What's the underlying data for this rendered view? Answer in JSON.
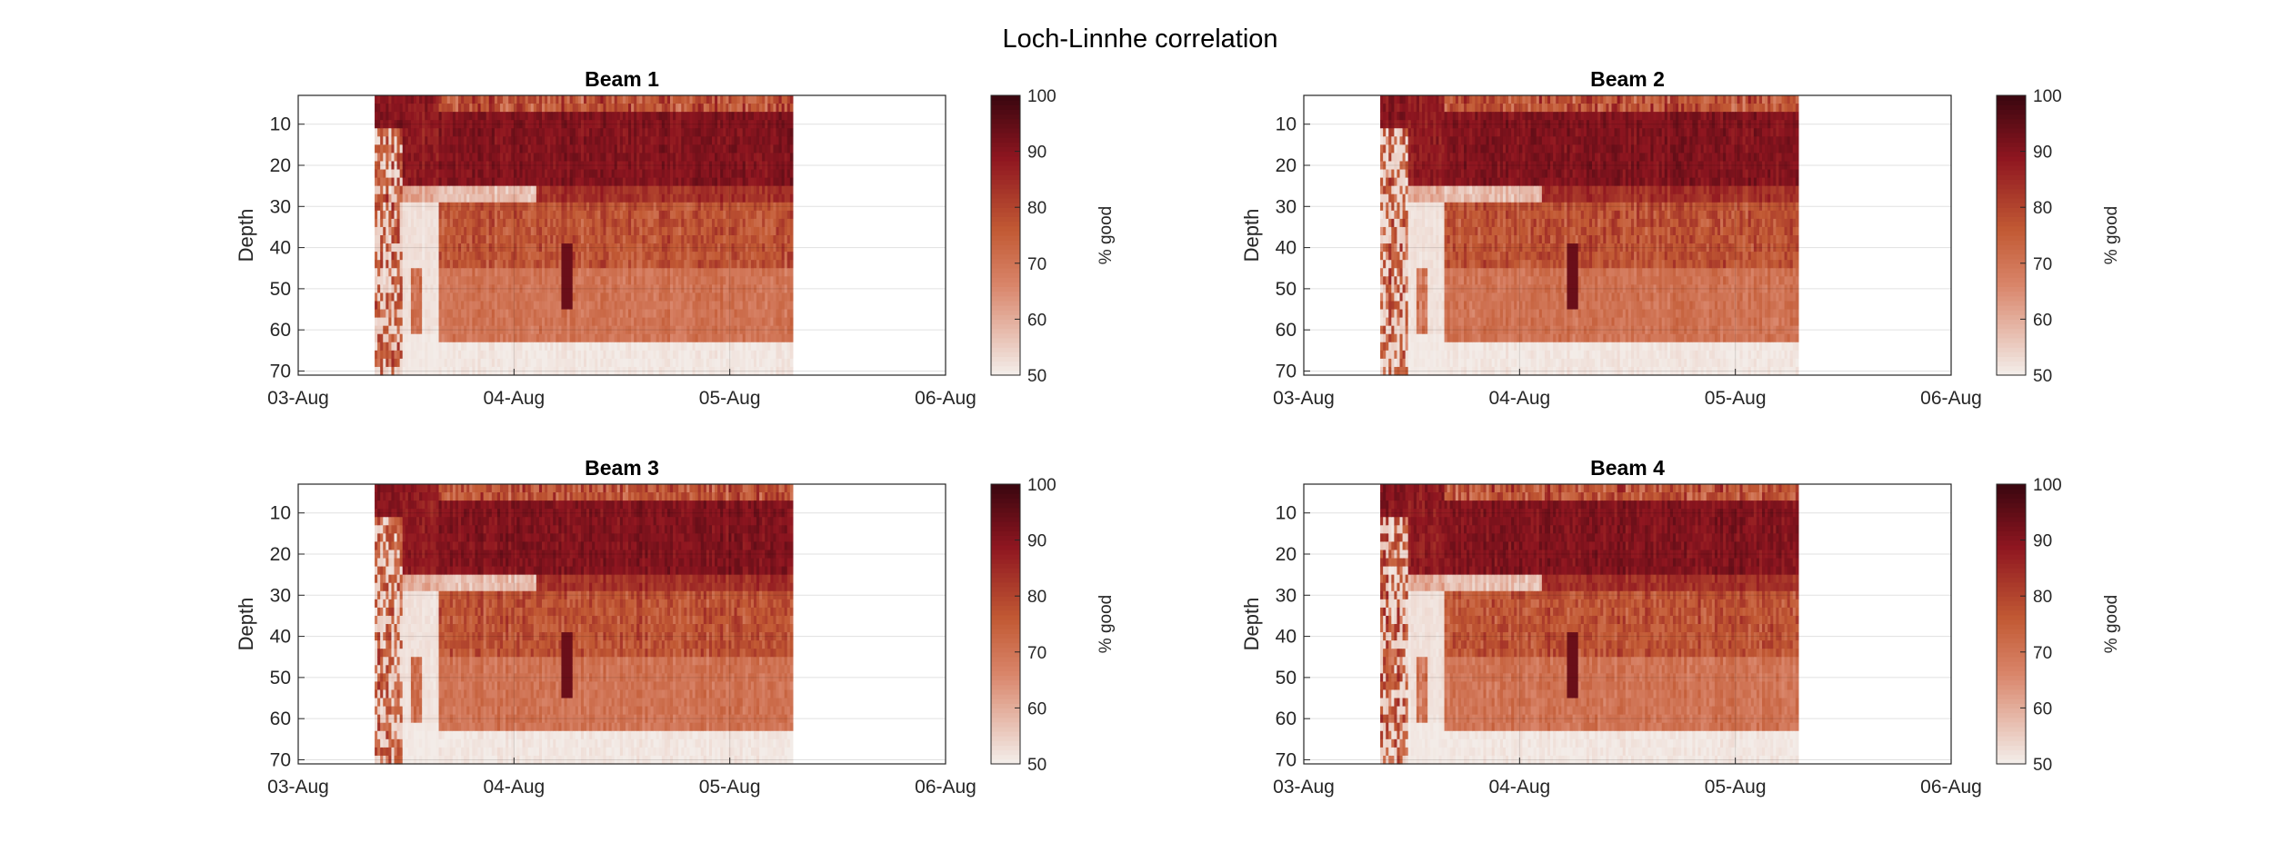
{
  "figure": {
    "suptitle": "Loch-Linnhe correlation"
  },
  "chart_data": [
    {
      "type": "heatmap",
      "title": "Beam 1",
      "xlabel": "",
      "ylabel": "Depth",
      "colorbar_label": "% good",
      "x_ticks": [
        "03-Aug",
        "04-Aug",
        "05-Aug",
        "06-Aug"
      ],
      "y_ticks": [
        10,
        20,
        30,
        40,
        50,
        60,
        70
      ],
      "x_range": [
        "03-Aug",
        "06-Aug"
      ],
      "data_x_range": [
        "03-Aug 08:30",
        "05-Aug 07:00"
      ],
      "y_range": [
        3,
        71
      ],
      "y_reversed": true,
      "color_range": [
        50,
        100
      ],
      "colorbar_ticks": [
        50,
        60,
        70,
        80,
        90,
        100
      ],
      "grid": true
    },
    {
      "type": "heatmap",
      "title": "Beam 2",
      "xlabel": "",
      "ylabel": "Depth",
      "colorbar_label": "% good",
      "x_ticks": [
        "03-Aug",
        "04-Aug",
        "05-Aug",
        "06-Aug"
      ],
      "y_ticks": [
        10,
        20,
        30,
        40,
        50,
        60,
        70
      ],
      "x_range": [
        "03-Aug",
        "06-Aug"
      ],
      "data_x_range": [
        "03-Aug 08:30",
        "05-Aug 07:00"
      ],
      "y_range": [
        3,
        71
      ],
      "y_reversed": true,
      "color_range": [
        50,
        100
      ],
      "colorbar_ticks": [
        50,
        60,
        70,
        80,
        90,
        100
      ],
      "grid": true
    },
    {
      "type": "heatmap",
      "title": "Beam 3",
      "xlabel": "",
      "ylabel": "Depth",
      "colorbar_label": "% good",
      "x_ticks": [
        "03-Aug",
        "04-Aug",
        "05-Aug",
        "06-Aug"
      ],
      "y_ticks": [
        10,
        20,
        30,
        40,
        50,
        60,
        70
      ],
      "x_range": [
        "03-Aug",
        "06-Aug"
      ],
      "data_x_range": [
        "03-Aug 08:30",
        "05-Aug 07:00"
      ],
      "y_range": [
        3,
        71
      ],
      "y_reversed": true,
      "color_range": [
        50,
        100
      ],
      "colorbar_ticks": [
        50,
        60,
        70,
        80,
        90,
        100
      ],
      "grid": true
    },
    {
      "type": "heatmap",
      "title": "Beam 4",
      "xlabel": "",
      "ylabel": "Depth",
      "colorbar_label": "% good",
      "x_ticks": [
        "03-Aug",
        "04-Aug",
        "05-Aug",
        "06-Aug"
      ],
      "y_ticks": [
        10,
        20,
        30,
        40,
        50,
        60,
        70
      ],
      "x_range": [
        "03-Aug",
        "06-Aug"
      ],
      "data_x_range": [
        "03-Aug 08:30",
        "05-Aug 07:00"
      ],
      "y_range": [
        3,
        71
      ],
      "y_reversed": true,
      "color_range": [
        50,
        100
      ],
      "colorbar_ticks": [
        50,
        60,
        70,
        80,
        90,
        100
      ],
      "grid": true
    }
  ],
  "colormap": {
    "low": "#f3ece8",
    "mid_low": "#d9856a",
    "mid": "#c25a34",
    "mid_high": "#8f1620",
    "high": "#3d0710"
  }
}
